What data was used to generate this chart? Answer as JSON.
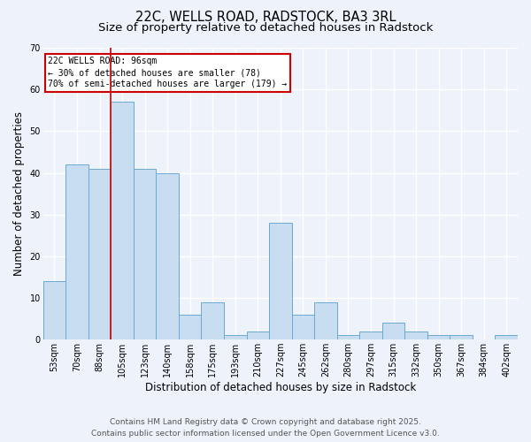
{
  "title1": "22C, WELLS ROAD, RADSTOCK, BA3 3RL",
  "title2": "Size of property relative to detached houses in Radstock",
  "xlabel": "Distribution of detached houses by size in Radstock",
  "ylabel": "Number of detached properties",
  "categories": [
    "53sqm",
    "70sqm",
    "88sqm",
    "105sqm",
    "123sqm",
    "140sqm",
    "158sqm",
    "175sqm",
    "193sqm",
    "210sqm",
    "227sqm",
    "245sqm",
    "262sqm",
    "280sqm",
    "297sqm",
    "315sqm",
    "332sqm",
    "350sqm",
    "367sqm",
    "384sqm",
    "402sqm"
  ],
  "values": [
    14,
    42,
    41,
    57,
    41,
    40,
    6,
    9,
    1,
    2,
    28,
    6,
    9,
    1,
    2,
    4,
    2,
    1,
    1,
    0,
    1
  ],
  "bar_color": "#c9ddf0",
  "bar_edge_color": "#6aaad4",
  "annotation_text": "22C WELLS ROAD: 96sqm\n← 30% of detached houses are smaller (78)\n70% of semi-detached houses are larger (179) →",
  "annotation_box_color": "#ffffff",
  "annotation_box_edge": "#cc0000",
  "ylim": [
    0,
    70
  ],
  "yticks": [
    0,
    10,
    20,
    30,
    40,
    50,
    60,
    70
  ],
  "footer1": "Contains HM Land Registry data © Crown copyright and database right 2025.",
  "footer2": "Contains public sector information licensed under the Open Government Licence v3.0.",
  "bg_color": "#eef2fb",
  "grid_color": "#ffffff",
  "title_fontsize": 10.5,
  "subtitle_fontsize": 9.5,
  "tick_fontsize": 7,
  "label_fontsize": 8.5,
  "footer_fontsize": 6.5
}
